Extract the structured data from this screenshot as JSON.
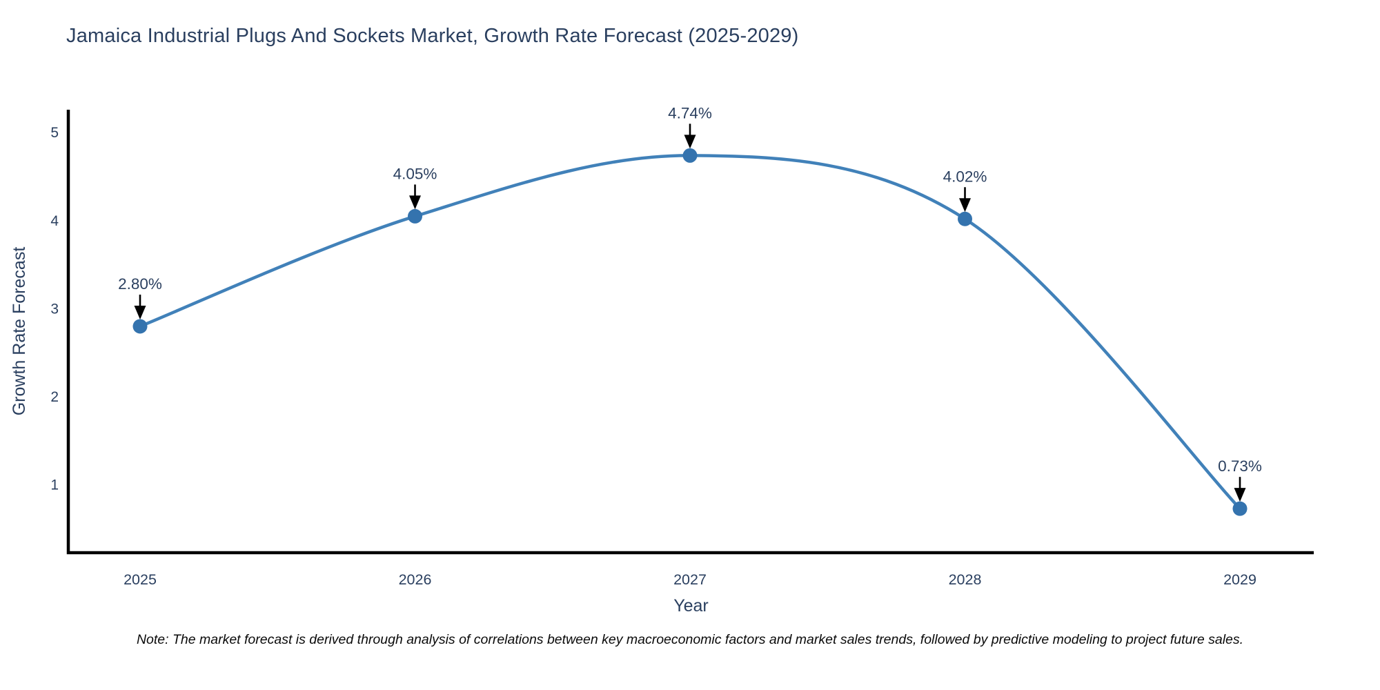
{
  "title": "Jamaica Industrial Plugs And Sockets Market, Growth Rate Forecast (2025-2029)",
  "note": "Note: The market forecast is derived through analysis of correlations between key macroeconomic factors and market sales trends, followed by predictive modeling to project future sales.",
  "chart_data": {
    "type": "line",
    "title": "Jamaica Industrial Plugs And Sockets Market, Growth Rate Forecast (2025-2029)",
    "xlabel": "Year",
    "ylabel": "Growth Rate Forecast",
    "categories": [
      "2025",
      "2026",
      "2027",
      "2028",
      "2029"
    ],
    "values": [
      2.8,
      4.05,
      4.74,
      4.02,
      0.73
    ],
    "point_labels": [
      "2.80%",
      "4.05%",
      "4.74%",
      "4.02%",
      "0.73%"
    ],
    "yticks": [
      1,
      2,
      3,
      4,
      5
    ],
    "ylim": [
      0.23,
      5.26
    ],
    "grid": false,
    "legend_position": "none",
    "line_shape": "spline",
    "colors": {
      "line": "#4181b9",
      "marker": "#3473ae",
      "axis": "#000000",
      "tick_text": "#2a3f5f",
      "title_text": "#2a3f5f",
      "annotation_text": "#2a3f5f",
      "annotation_arrow": "#000000",
      "background": "#ffffff"
    }
  }
}
